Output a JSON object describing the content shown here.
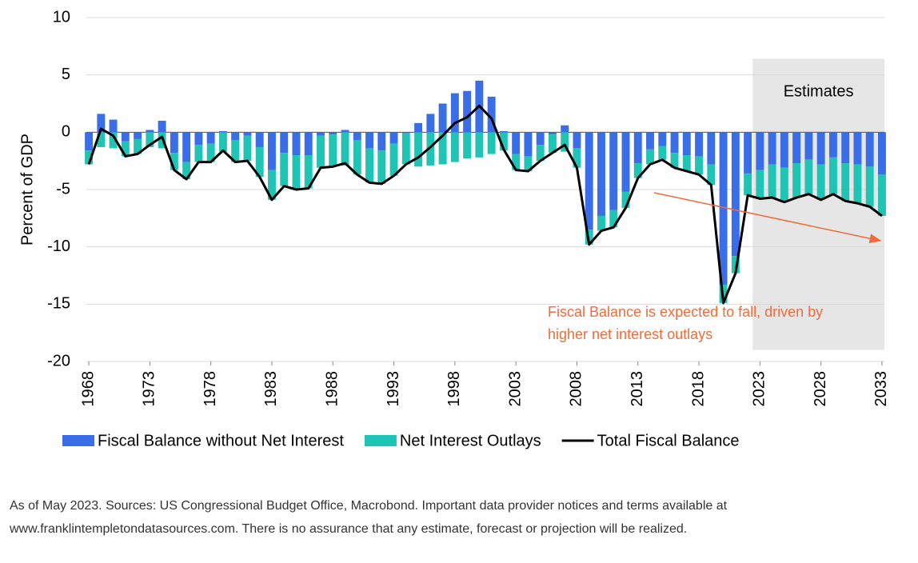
{
  "chart_data": {
    "type": "bar",
    "y_label": "Percent of GDP",
    "x": [
      1968,
      1969,
      1970,
      1971,
      1972,
      1973,
      1974,
      1975,
      1976,
      1977,
      1978,
      1979,
      1980,
      1981,
      1982,
      1983,
      1984,
      1985,
      1986,
      1987,
      1988,
      1989,
      1990,
      1991,
      1992,
      1993,
      1994,
      1995,
      1996,
      1997,
      1998,
      1999,
      2000,
      2001,
      2002,
      2003,
      2004,
      2005,
      2006,
      2007,
      2008,
      2009,
      2010,
      2011,
      2012,
      2013,
      2014,
      2015,
      2016,
      2017,
      2018,
      2019,
      2020,
      2021,
      2022,
      2023,
      2024,
      2025,
      2026,
      2027,
      2028,
      2029,
      2030,
      2031,
      2032,
      2033
    ],
    "series": [
      {
        "name": "Fiscal Balance without Net Interest",
        "color": "#3a6ee8",
        "type": "bar",
        "values": [
          -1.6,
          1.6,
          1.1,
          -0.8,
          -0.6,
          0.2,
          1.0,
          -1.8,
          -2.6,
          -1.1,
          -1.0,
          0.1,
          -0.7,
          -0.3,
          -1.3,
          -3.3,
          -1.8,
          -2.0,
          -2.0,
          -0.3,
          -0.2,
          0.2,
          -0.7,
          -1.4,
          -1.6,
          -1.0,
          -0.1,
          0.8,
          1.6,
          2.5,
          3.4,
          3.6,
          4.5,
          3.1,
          0.1,
          -1.9,
          -2.1,
          -1.1,
          -0.2,
          0.6,
          -1.4,
          -8.5,
          -7.3,
          -6.8,
          -5.2,
          -2.7,
          -1.5,
          -1.2,
          -1.8,
          -2.0,
          -2.1,
          -2.8,
          -13.3,
          -10.8,
          -3.6,
          -3.3,
          -2.8,
          -3.1,
          -2.7,
          -2.4,
          -2.8,
          -2.2,
          -2.7,
          -2.8,
          -3.0,
          -3.7
        ]
      },
      {
        "name": "Net Interest Outlays",
        "color": "#1fc4b4",
        "type": "bar",
        "values": [
          -1.2,
          -1.3,
          -1.4,
          -1.3,
          -1.3,
          -1.3,
          -1.4,
          -1.5,
          -1.5,
          -1.5,
          -1.6,
          -1.7,
          -1.9,
          -2.2,
          -2.6,
          -2.6,
          -2.9,
          -3.0,
          -2.9,
          -2.8,
          -2.8,
          -2.9,
          -3.0,
          -3.0,
          -2.9,
          -2.8,
          -2.7,
          -3.0,
          -2.9,
          -2.8,
          -2.6,
          -2.3,
          -2.2,
          -1.9,
          -1.6,
          -1.4,
          -1.3,
          -1.4,
          -1.6,
          -1.7,
          -1.7,
          -1.3,
          -1.3,
          -1.5,
          -1.4,
          -1.3,
          -1.3,
          -1.2,
          -1.3,
          -1.4,
          -1.6,
          -1.8,
          -1.6,
          -1.5,
          -1.9,
          -2.5,
          -2.9,
          -3.0,
          -3.0,
          -3.0,
          -3.1,
          -3.2,
          -3.3,
          -3.4,
          -3.5,
          -3.6
        ]
      },
      {
        "name": "Total Fiscal Balance",
        "color": "#000000",
        "type": "line",
        "values": [
          -2.8,
          0.3,
          -0.3,
          -2.1,
          -1.9,
          -1.1,
          -0.4,
          -3.3,
          -4.1,
          -2.6,
          -2.6,
          -1.6,
          -2.6,
          -2.5,
          -3.9,
          -5.9,
          -4.7,
          -5.0,
          -4.9,
          -3.1,
          -3.0,
          -2.7,
          -3.7,
          -4.4,
          -4.5,
          -3.8,
          -2.8,
          -2.2,
          -1.3,
          -0.3,
          0.8,
          1.3,
          2.3,
          1.2,
          -1.5,
          -3.3,
          -3.4,
          -2.5,
          -1.8,
          -1.1,
          -3.1,
          -9.8,
          -8.6,
          -8.3,
          -6.6,
          -4.0,
          -2.8,
          -2.4,
          -3.1,
          -3.4,
          -3.7,
          -4.6,
          -14.9,
          -12.3,
          -5.5,
          -5.8,
          -5.7,
          -6.1,
          -5.7,
          -5.4,
          -5.9,
          -5.4,
          -6.0,
          -6.2,
          -6.5,
          -7.3
        ]
      }
    ],
    "xlim": [
      1967.8,
      2033.2
    ],
    "xticks": [
      1968,
      1973,
      1978,
      1983,
      1988,
      1993,
      1998,
      2003,
      2008,
      2013,
      2018,
      2023,
      2028,
      2033
    ],
    "ylim": [
      -20,
      10
    ],
    "yticks": [
      -20,
      -15,
      -10,
      -5,
      0,
      5,
      10
    ],
    "grid": true,
    "shaded_region": {
      "label": "Estimates",
      "x": [
        2022.4,
        2033.2
      ],
      "y": [
        -19,
        6.4
      ]
    },
    "annotation": [
      "Fiscal Balance is expected to fall, driven by",
      "higher net interest outlays"
    ],
    "footnote": [
      "As of May 2023. Sources: US Congressional Budget Office, Macrobond. Important data provider notices and terms available at",
      "www.franklintempletondatasources.com. There is no assurance that any estimate, forecast or projection will be realized."
    ]
  }
}
